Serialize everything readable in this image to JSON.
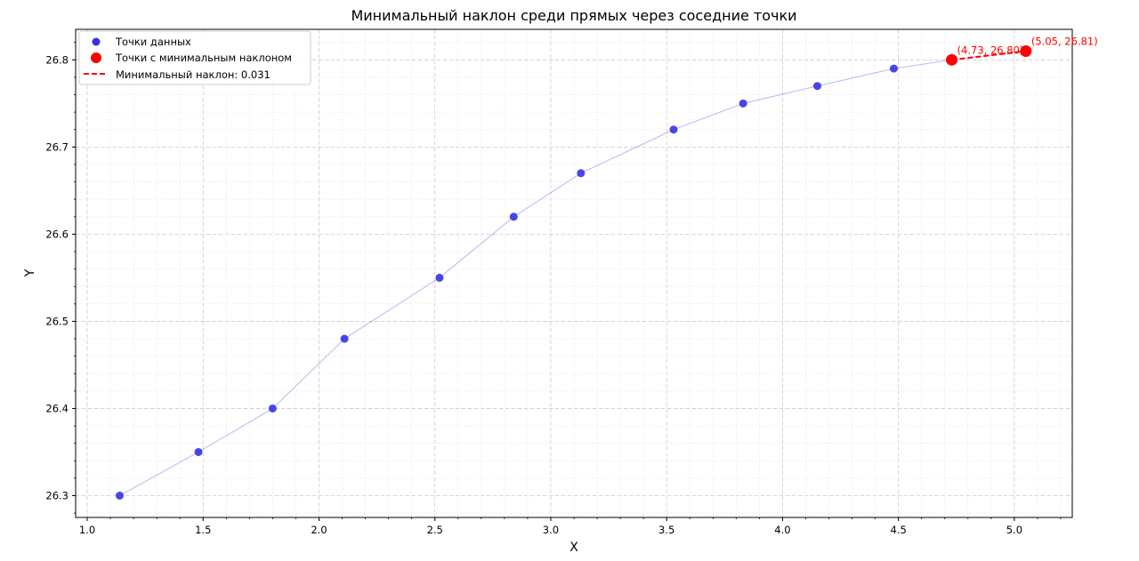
{
  "chart_data": {
    "type": "scatter",
    "title": "Минимальный наклон среди прямых через соседние точки",
    "xlabel": "X",
    "ylabel": "Y",
    "xlim": [
      0.95,
      5.25
    ],
    "ylim": [
      26.275,
      26.835
    ],
    "xticks": [
      "1.0",
      "1.5",
      "2.0",
      "2.5",
      "3.0",
      "3.5",
      "4.0",
      "4.5",
      "5.0"
    ],
    "yticks": [
      "26.3",
      "26.4",
      "26.5",
      "26.6",
      "26.7",
      "26.8"
    ],
    "grid": true,
    "legend_position": "top-left",
    "series": [
      {
        "name": "Точки данных",
        "color": "#3333e6",
        "x": [
          1.14,
          1.48,
          1.8,
          2.11,
          2.52,
          2.84,
          3.13,
          3.53,
          3.83,
          4.15,
          4.48,
          4.73,
          5.05
        ],
        "y": [
          26.3,
          26.35,
          26.4,
          26.48,
          26.55,
          26.62,
          26.67,
          26.72,
          26.75,
          26.77,
          26.79,
          26.8,
          26.81
        ]
      },
      {
        "name": "Точки с минимальным наклоном",
        "color": "#ff0000",
        "x": [
          4.73,
          5.05
        ],
        "y": [
          26.8,
          26.81
        ]
      },
      {
        "name": "Минимальный наклон: 0.031",
        "color": "#ff0000",
        "style": "dashed",
        "x": [
          4.73,
          5.05
        ],
        "y": [
          26.8,
          26.81
        ]
      }
    ],
    "annotations": [
      {
        "text": "(4.73, 26.80)",
        "x": 4.73,
        "y": 26.8,
        "color": "#ff0000"
      },
      {
        "text": "(5.05, 26.81)",
        "x": 5.05,
        "y": 26.81,
        "color": "#ff0000"
      }
    ]
  }
}
